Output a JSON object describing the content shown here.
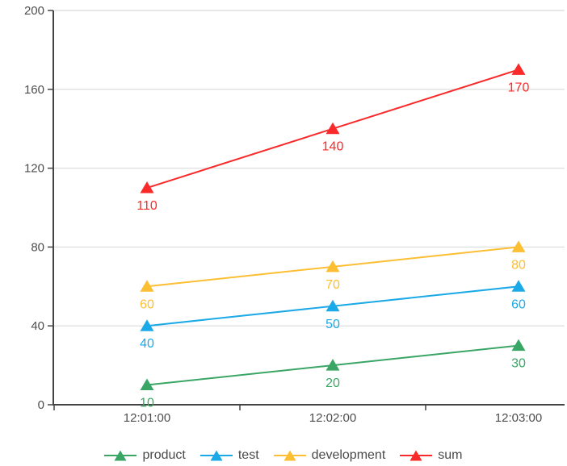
{
  "chart_data": {
    "type": "line",
    "title": "",
    "categories": [
      "12:01:00",
      "12:02:00",
      "12:03:00"
    ],
    "series": [
      {
        "name": "product",
        "color": "#3aa665",
        "values": [
          10,
          20,
          30
        ]
      },
      {
        "name": "test",
        "color": "#1ba9e8",
        "values": [
          40,
          50,
          60
        ]
      },
      {
        "name": "development",
        "color": "#fcbe32",
        "values": [
          60,
          70,
          80
        ]
      },
      {
        "name": "sum",
        "color": "#fa2a2a",
        "values": [
          110,
          140,
          170
        ]
      }
    ],
    "ylim": [
      0,
      200
    ],
    "yticks": [
      0,
      40,
      80,
      120,
      160,
      200
    ],
    "marker": "triangle",
    "grid": true,
    "data_labels": true,
    "legend_position": "bottom"
  },
  "style": {
    "axis_color": "#444444",
    "grid_color": "#e0e0e0",
    "tick_label_color": "#4d4d4d",
    "legend_text_color": "#4a4a4a",
    "background": "#ffffff"
  }
}
